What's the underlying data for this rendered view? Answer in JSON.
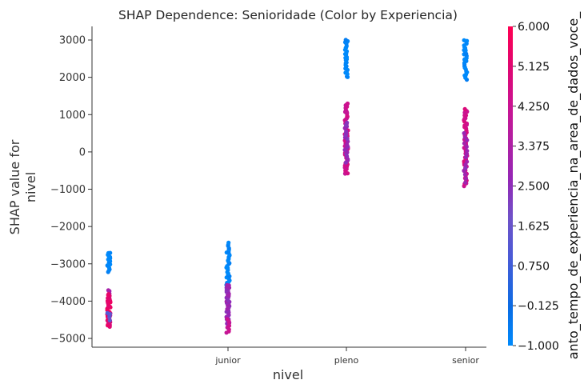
{
  "chart_data": {
    "type": "scatter",
    "title": "SHAP Dependence: Senioridade (Color by Experiencia)",
    "xlabel": "nivel",
    "ylabel_lines": [
      "SHAP value for",
      "nivel"
    ],
    "categories": [
      "",
      "junior",
      "pleno",
      "senior"
    ],
    "x_tick_labels": [
      "junior",
      "pleno",
      "senior"
    ],
    "ylim": [
      -5300,
      3400
    ],
    "yticks": [
      3000,
      2000,
      1000,
      0,
      -1000,
      -2000,
      -3000,
      -4000,
      -5000
    ],
    "ytick_labels": [
      "3000",
      "2000",
      "1000",
      "0",
      "−1000",
      "−2000",
      "−3000",
      "−4000",
      "−5000"
    ],
    "colorbar": {
      "label": "anto_tempo_de_experiencia_na_area_de_dados_voce_",
      "range": [
        -1.0,
        6.0
      ],
      "ticks": [
        6.0,
        5.125,
        4.25,
        3.375,
        2.5,
        1.625,
        0.75,
        -0.125,
        -1.0
      ],
      "tick_labels": [
        "6.000",
        "5.125",
        "4.250",
        "3.375",
        "2.500",
        "1.625",
        "0.750",
        "−0.125",
        "−1.000"
      ],
      "colors": [
        "#008afb",
        "#0a6ce4",
        "#4b5ad6",
        "#6f52c8",
        "#9427b6",
        "#b11fa3",
        "#cc1290",
        "#e1066f",
        "#ff0052"
      ]
    },
    "groups": [
      {
        "category": "",
        "clusters": [
          {
            "y_range": [
              -3200,
              -2700
            ],
            "color_value": -1.0,
            "count": 18
          },
          {
            "y_range": [
              -4050,
              -3700
            ],
            "color_value": 3.0,
            "count": 8
          },
          {
            "y_range": [
              -4680,
              -3800
            ],
            "color_value": 5.2,
            "count": 40
          },
          {
            "y_range": [
              -4500,
              -4300
            ],
            "color_value": 1.2,
            "count": 5
          }
        ]
      },
      {
        "category": "junior",
        "clusters": [
          {
            "y_range": [
              -3550,
              -2450
            ],
            "color_value": -1.0,
            "count": 30
          },
          {
            "y_range": [
              -4600,
              -3550
            ],
            "color_value": 2.6,
            "count": 45
          },
          {
            "y_range": [
              -4850,
              -4500
            ],
            "color_value": 4.0,
            "count": 8
          }
        ]
      },
      {
        "category": "pleno",
        "clusters": [
          {
            "y_range": [
              2000,
              3000
            ],
            "color_value": -1.0,
            "count": 28
          },
          {
            "y_range": [
              -600,
              1300
            ],
            "color_value": 4.3,
            "count": 60
          },
          {
            "y_range": [
              -300,
              800
            ],
            "color_value": 2.4,
            "count": 20
          }
        ]
      },
      {
        "category": "senior",
        "clusters": [
          {
            "y_range": [
              1950,
              3000
            ],
            "color_value": -1.0,
            "count": 30
          },
          {
            "y_range": [
              -900,
              1150
            ],
            "color_value": 4.5,
            "count": 55
          },
          {
            "y_range": [
              -800,
              500
            ],
            "color_value": 2.6,
            "count": 15
          }
        ]
      }
    ]
  }
}
